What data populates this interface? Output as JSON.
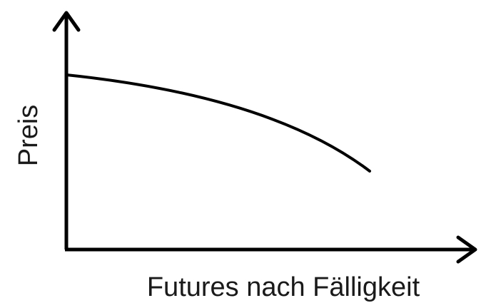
{
  "y_axis": {
    "label": "Preis"
  },
  "x_axis": {
    "label": "Futures nach Fälligkeit"
  }
}
